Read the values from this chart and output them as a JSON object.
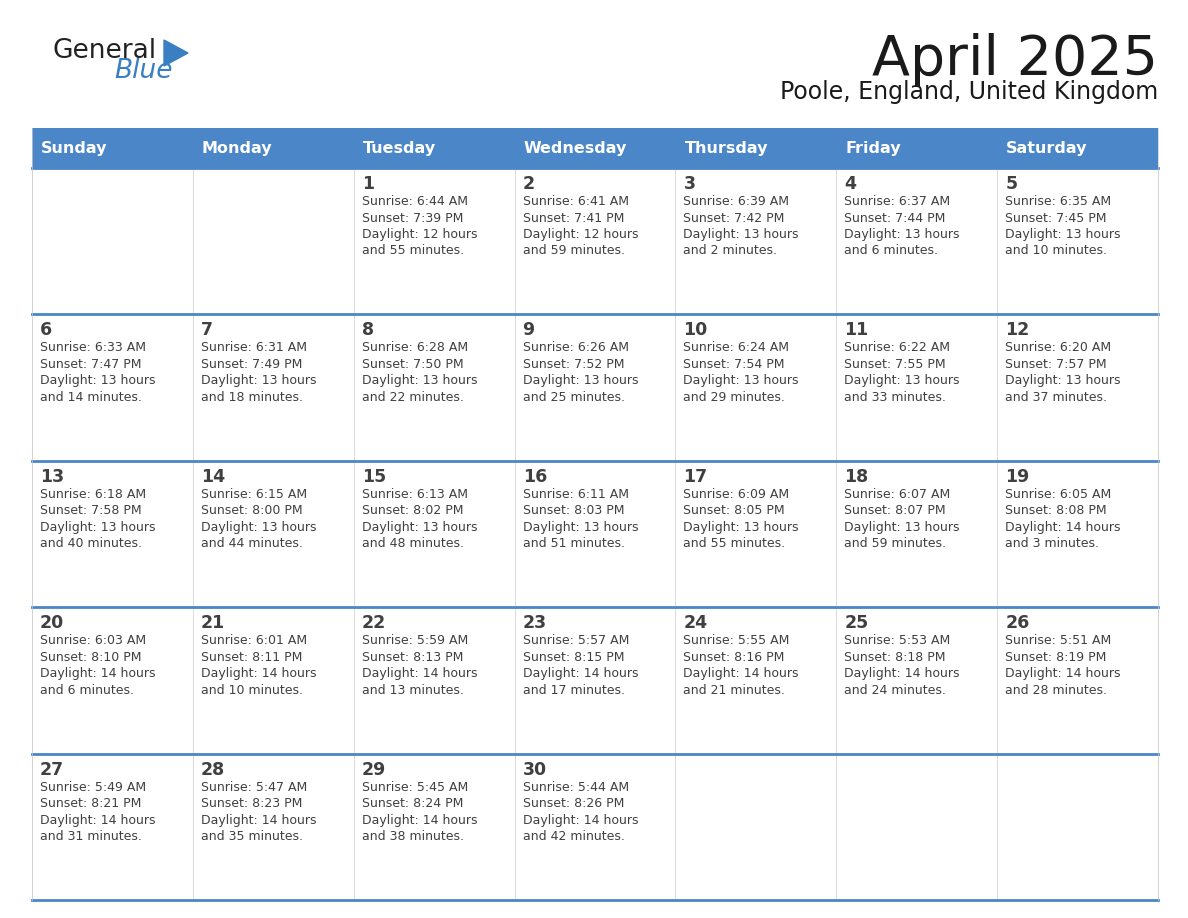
{
  "title": "April 2025",
  "subtitle": "Poole, England, United Kingdom",
  "header_bg": "#4A86C8",
  "header_text_color": "#FFFFFF",
  "day_names": [
    "Sunday",
    "Monday",
    "Tuesday",
    "Wednesday",
    "Thursday",
    "Friday",
    "Saturday"
  ],
  "cell_bg": "#FFFFFF",
  "row_divider_color": "#4A86C8",
  "cell_border_color": "#CCCCCC",
  "text_color": "#404040",
  "calendar_data": [
    [
      {
        "day": "",
        "sunrise": "",
        "sunset": "",
        "daylight": ""
      },
      {
        "day": "",
        "sunrise": "",
        "sunset": "",
        "daylight": ""
      },
      {
        "day": "1",
        "sunrise": "6:44 AM",
        "sunset": "7:39 PM",
        "daylight": "12 hours\nand 55 minutes."
      },
      {
        "day": "2",
        "sunrise": "6:41 AM",
        "sunset": "7:41 PM",
        "daylight": "12 hours\nand 59 minutes."
      },
      {
        "day": "3",
        "sunrise": "6:39 AM",
        "sunset": "7:42 PM",
        "daylight": "13 hours\nand 2 minutes."
      },
      {
        "day": "4",
        "sunrise": "6:37 AM",
        "sunset": "7:44 PM",
        "daylight": "13 hours\nand 6 minutes."
      },
      {
        "day": "5",
        "sunrise": "6:35 AM",
        "sunset": "7:45 PM",
        "daylight": "13 hours\nand 10 minutes."
      }
    ],
    [
      {
        "day": "6",
        "sunrise": "6:33 AM",
        "sunset": "7:47 PM",
        "daylight": "13 hours\nand 14 minutes."
      },
      {
        "day": "7",
        "sunrise": "6:31 AM",
        "sunset": "7:49 PM",
        "daylight": "13 hours\nand 18 minutes."
      },
      {
        "day": "8",
        "sunrise": "6:28 AM",
        "sunset": "7:50 PM",
        "daylight": "13 hours\nand 22 minutes."
      },
      {
        "day": "9",
        "sunrise": "6:26 AM",
        "sunset": "7:52 PM",
        "daylight": "13 hours\nand 25 minutes."
      },
      {
        "day": "10",
        "sunrise": "6:24 AM",
        "sunset": "7:54 PM",
        "daylight": "13 hours\nand 29 minutes."
      },
      {
        "day": "11",
        "sunrise": "6:22 AM",
        "sunset": "7:55 PM",
        "daylight": "13 hours\nand 33 minutes."
      },
      {
        "day": "12",
        "sunrise": "6:20 AM",
        "sunset": "7:57 PM",
        "daylight": "13 hours\nand 37 minutes."
      }
    ],
    [
      {
        "day": "13",
        "sunrise": "6:18 AM",
        "sunset": "7:58 PM",
        "daylight": "13 hours\nand 40 minutes."
      },
      {
        "day": "14",
        "sunrise": "6:15 AM",
        "sunset": "8:00 PM",
        "daylight": "13 hours\nand 44 minutes."
      },
      {
        "day": "15",
        "sunrise": "6:13 AM",
        "sunset": "8:02 PM",
        "daylight": "13 hours\nand 48 minutes."
      },
      {
        "day": "16",
        "sunrise": "6:11 AM",
        "sunset": "8:03 PM",
        "daylight": "13 hours\nand 51 minutes."
      },
      {
        "day": "17",
        "sunrise": "6:09 AM",
        "sunset": "8:05 PM",
        "daylight": "13 hours\nand 55 minutes."
      },
      {
        "day": "18",
        "sunrise": "6:07 AM",
        "sunset": "8:07 PM",
        "daylight": "13 hours\nand 59 minutes."
      },
      {
        "day": "19",
        "sunrise": "6:05 AM",
        "sunset": "8:08 PM",
        "daylight": "14 hours\nand 3 minutes."
      }
    ],
    [
      {
        "day": "20",
        "sunrise": "6:03 AM",
        "sunset": "8:10 PM",
        "daylight": "14 hours\nand 6 minutes."
      },
      {
        "day": "21",
        "sunrise": "6:01 AM",
        "sunset": "8:11 PM",
        "daylight": "14 hours\nand 10 minutes."
      },
      {
        "day": "22",
        "sunrise": "5:59 AM",
        "sunset": "8:13 PM",
        "daylight": "14 hours\nand 13 minutes."
      },
      {
        "day": "23",
        "sunrise": "5:57 AM",
        "sunset": "8:15 PM",
        "daylight": "14 hours\nand 17 minutes."
      },
      {
        "day": "24",
        "sunrise": "5:55 AM",
        "sunset": "8:16 PM",
        "daylight": "14 hours\nand 21 minutes."
      },
      {
        "day": "25",
        "sunrise": "5:53 AM",
        "sunset": "8:18 PM",
        "daylight": "14 hours\nand 24 minutes."
      },
      {
        "day": "26",
        "sunrise": "5:51 AM",
        "sunset": "8:19 PM",
        "daylight": "14 hours\nand 28 minutes."
      }
    ],
    [
      {
        "day": "27",
        "sunrise": "5:49 AM",
        "sunset": "8:21 PM",
        "daylight": "14 hours\nand 31 minutes."
      },
      {
        "day": "28",
        "sunrise": "5:47 AM",
        "sunset": "8:23 PM",
        "daylight": "14 hours\nand 35 minutes."
      },
      {
        "day": "29",
        "sunrise": "5:45 AM",
        "sunset": "8:24 PM",
        "daylight": "14 hours\nand 38 minutes."
      },
      {
        "day": "30",
        "sunrise": "5:44 AM",
        "sunset": "8:26 PM",
        "daylight": "14 hours\nand 42 minutes."
      },
      {
        "day": "",
        "sunrise": "",
        "sunset": "",
        "daylight": ""
      },
      {
        "day": "",
        "sunrise": "",
        "sunset": "",
        "daylight": ""
      },
      {
        "day": "",
        "sunrise": "",
        "sunset": "",
        "daylight": ""
      }
    ]
  ]
}
